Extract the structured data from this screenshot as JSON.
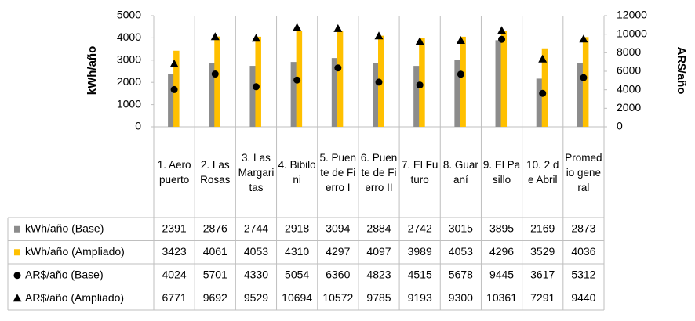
{
  "chart_data": {
    "type": "bar",
    "y_label": "kWh/año",
    "y2_label": "AR$/año",
    "categories": [
      "1. Aeropuerto",
      "2. Las Rosas",
      "3. Las Margaritas",
      "4. Bibiloni",
      "5. Puente de Fierro I",
      "6. Puente de Fierro II",
      "7. El Futuro",
      "8. Guaraní",
      "9. El Pasillo",
      "10. 2 de Abril",
      "Promedio general"
    ],
    "series": [
      {
        "name": "kWh/año (Base)",
        "type": "bar",
        "color": "#8c8c8c",
        "values": [
          2391,
          2876,
          2744,
          2918,
          3094,
          2884,
          2742,
          3015,
          3895,
          2169,
          2873
        ]
      },
      {
        "name": "kWh/año (Ampliado)",
        "type": "bar",
        "color": "#ffc000",
        "values": [
          3423,
          4061,
          4053,
          4310,
          4297,
          4097,
          3989,
          4053,
          4296,
          3529,
          4036
        ]
      },
      {
        "name": "AR$/año (Base)",
        "type": "circle",
        "axis": "y2",
        "color": "#000000",
        "values": [
          4024,
          5701,
          4330,
          5054,
          6360,
          4823,
          4515,
          5678,
          9445,
          3617,
          5312
        ]
      },
      {
        "name": "AR$/año (Ampliado)",
        "type": "triangle",
        "axis": "y2",
        "color": "#000000",
        "values": [
          6771,
          9692,
          9529,
          10694,
          10572,
          9785,
          9193,
          9300,
          10361,
          7291,
          9440
        ]
      }
    ],
    "ylim": [
      0,
      5000
    ],
    "yticks": [
      0,
      1000,
      2000,
      3000,
      4000,
      5000
    ],
    "y2lim": [
      0,
      12000
    ],
    "y2ticks": [
      0,
      2000,
      4000,
      6000,
      8000,
      10000,
      12000
    ]
  }
}
